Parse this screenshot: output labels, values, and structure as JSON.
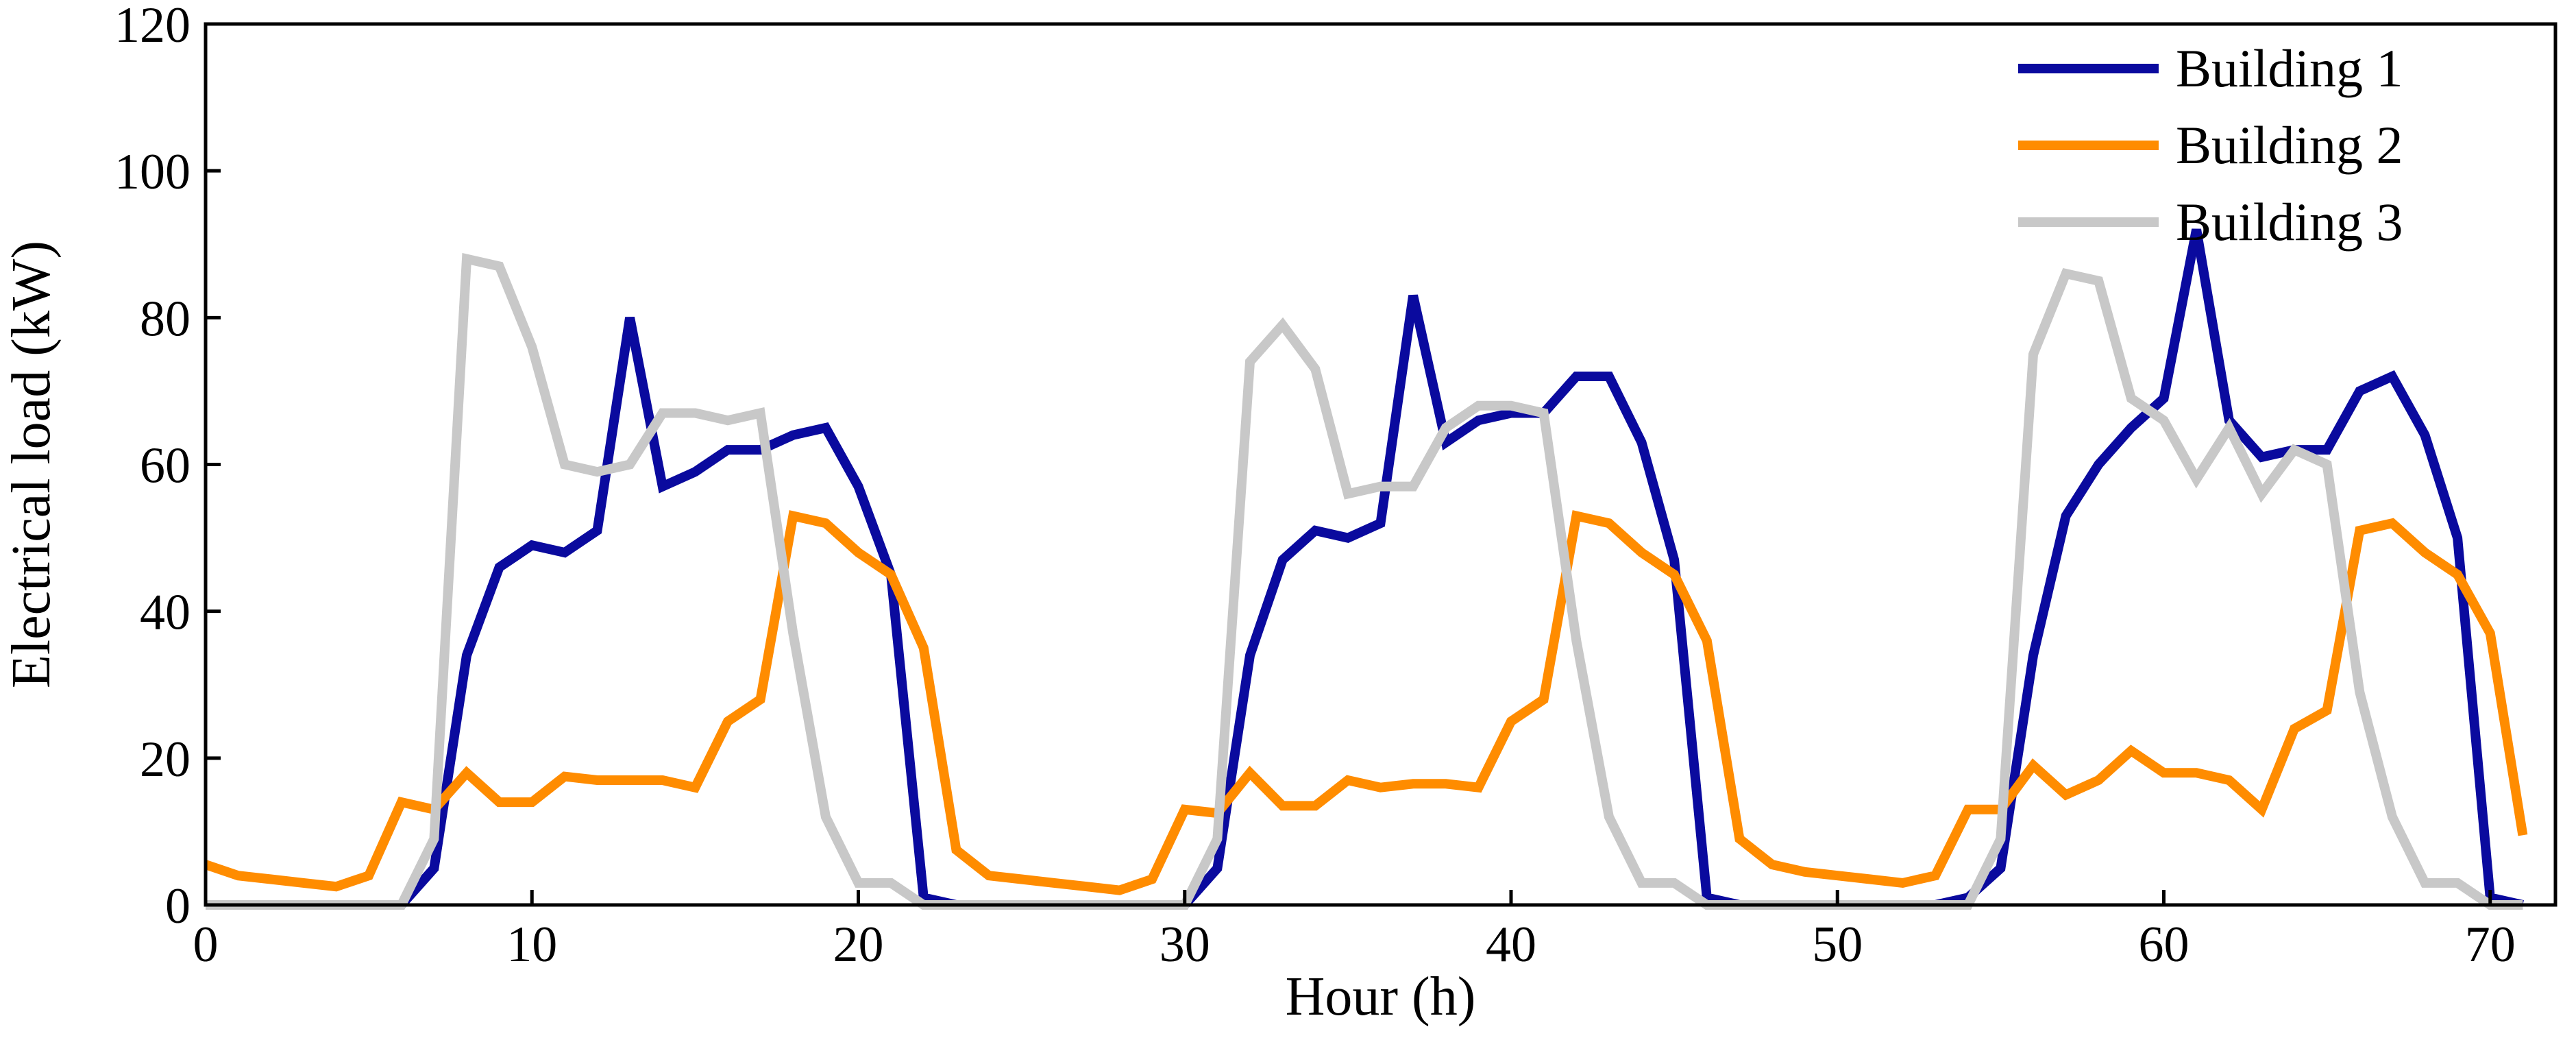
{
  "chart_data": {
    "type": "line",
    "title": "",
    "xlabel": "Hour (h)",
    "ylabel": "Electrical load (kW)",
    "xlim": [
      0,
      72
    ],
    "ylim": [
      0,
      120
    ],
    "xticks": [
      0,
      10,
      20,
      30,
      40,
      50,
      60,
      70
    ],
    "yticks": [
      0,
      20,
      40,
      60,
      80,
      100,
      120
    ],
    "grid": false,
    "legend_position": "top-right",
    "x": [
      0,
      1,
      2,
      3,
      4,
      5,
      6,
      7,
      8,
      9,
      10,
      11,
      12,
      13,
      14,
      15,
      16,
      17,
      18,
      19,
      20,
      21,
      22,
      23,
      24,
      25,
      26,
      27,
      28,
      29,
      30,
      31,
      32,
      33,
      34,
      35,
      36,
      37,
      38,
      39,
      40,
      41,
      42,
      43,
      44,
      45,
      46,
      47,
      48,
      49,
      50,
      51,
      52,
      53,
      54,
      55,
      56,
      57,
      58,
      59,
      60,
      61,
      62,
      63,
      64,
      65,
      66,
      67,
      68,
      69,
      70,
      71
    ],
    "series": [
      {
        "name": "Building 1",
        "color": "#0a0a9e",
        "values": [
          0,
          0,
          0,
          0,
          0,
          0,
          0,
          5,
          34,
          46,
          49,
          48,
          51,
          80,
          57,
          59,
          62,
          62,
          64,
          65,
          57,
          45,
          1,
          0,
          0,
          0,
          0,
          0,
          0,
          0,
          0,
          5,
          34,
          47,
          51,
          50,
          52,
          83,
          63,
          66,
          67,
          67,
          72,
          72,
          63,
          47,
          1,
          0,
          0,
          0,
          0,
          0,
          0,
          0,
          1,
          5,
          34,
          53,
          60,
          65,
          69,
          92,
          66,
          61,
          62,
          62,
          70,
          72,
          64,
          50,
          1,
          0
        ]
      },
      {
        "name": "Building 2",
        "color": "#ff8c00",
        "values": [
          5.5,
          4,
          3.5,
          3,
          2.5,
          4,
          14,
          13,
          18,
          14,
          14,
          17.5,
          17,
          17,
          17,
          16,
          25,
          28,
          53,
          52,
          48,
          45,
          35,
          7.5,
          4,
          3.5,
          3,
          2.5,
          2,
          3.5,
          13,
          12.5,
          18,
          13.5,
          13.5,
          17,
          16,
          16.5,
          16.5,
          16,
          25,
          28,
          53,
          52,
          48,
          45,
          36,
          9,
          5.5,
          4.5,
          4,
          3.5,
          3,
          4,
          13,
          13,
          19,
          15,
          17,
          21,
          18,
          18,
          17,
          13,
          24,
          26.5,
          51,
          52,
          48,
          45,
          37,
          9.5
        ]
      },
      {
        "name": "Building 3",
        "color": "#c8c8c8",
        "values": [
          0,
          0,
          0,
          0,
          0,
          0,
          0,
          9,
          88,
          87,
          76,
          60,
          59,
          60,
          67,
          67,
          66,
          67,
          37,
          12,
          3,
          3,
          0,
          0,
          0,
          0,
          0,
          0,
          0,
          0,
          0,
          9,
          74,
          79,
          73,
          56,
          57,
          57,
          65,
          68,
          68,
          67,
          36,
          12,
          3,
          3,
          0,
          0,
          0,
          0,
          0,
          0,
          0,
          0,
          0,
          9,
          75,
          86,
          85,
          69,
          66,
          58,
          65,
          56,
          62,
          60,
          29,
          12,
          3,
          3,
          0,
          0
        ]
      }
    ]
  }
}
